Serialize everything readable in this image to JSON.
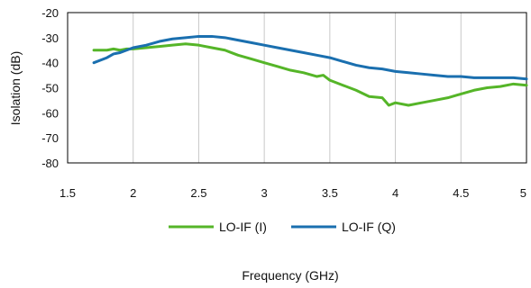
{
  "chart_data": {
    "type": "line",
    "title": "",
    "xlabel": "Frequency (GHz)",
    "ylabel": "Isolation (dB)",
    "xlim": [
      1.5,
      5
    ],
    "ylim": [
      -80,
      -20
    ],
    "x_ticks": [
      1.5,
      2,
      2.5,
      3,
      3.5,
      4,
      4.5,
      5
    ],
    "x_tick_labels": [
      "1.5",
      "2",
      "2.5",
      "3",
      "3.5",
      "4",
      "4.5",
      "5"
    ],
    "y_ticks": [
      -20,
      -30,
      -40,
      -50,
      -60,
      -70,
      -80
    ],
    "y_tick_labels": [
      "-20",
      "-30",
      "-40",
      "-50",
      "-60",
      "-70",
      "-80"
    ],
    "grid": {
      "vertical": true,
      "horizontal": false
    },
    "legend_position": "bottom",
    "series": [
      {
        "name": "LO-IF (I)",
        "color": "#55b528",
        "x": [
          1.7,
          1.8,
          1.85,
          1.9,
          1.95,
          2.0,
          2.1,
          2.2,
          2.3,
          2.4,
          2.5,
          2.6,
          2.7,
          2.8,
          2.9,
          3.0,
          3.1,
          3.2,
          3.3,
          3.4,
          3.45,
          3.5,
          3.6,
          3.7,
          3.8,
          3.9,
          3.95,
          4.0,
          4.1,
          4.2,
          4.3,
          4.4,
          4.5,
          4.6,
          4.7,
          4.8,
          4.9,
          5.0
        ],
        "values": [
          -35,
          -35,
          -34.5,
          -35,
          -34.5,
          -34.5,
          -34,
          -33.5,
          -33,
          -32.5,
          -33,
          -34,
          -35,
          -37,
          -38.5,
          -40,
          -41.5,
          -43,
          -44,
          -45.5,
          -45,
          -47,
          -49,
          -51,
          -53.5,
          -54,
          -57,
          -56,
          -57,
          -56,
          -55,
          -54,
          -52.5,
          -51,
          -50,
          -49.5,
          -48.5,
          -49
        ]
      },
      {
        "name": "LO-IF (Q)",
        "color": "#1a6faf",
        "x": [
          1.7,
          1.8,
          1.85,
          1.9,
          2.0,
          2.1,
          2.2,
          2.3,
          2.4,
          2.5,
          2.6,
          2.7,
          2.8,
          2.9,
          3.0,
          3.1,
          3.2,
          3.3,
          3.4,
          3.5,
          3.6,
          3.7,
          3.8,
          3.9,
          4.0,
          4.1,
          4.2,
          4.3,
          4.4,
          4.5,
          4.6,
          4.7,
          4.8,
          4.9,
          5.0
        ],
        "values": [
          -40,
          -38,
          -36.5,
          -36,
          -34,
          -33,
          -31.5,
          -30.5,
          -30,
          -29.5,
          -29.5,
          -30,
          -31,
          -32,
          -33,
          -34,
          -35,
          -36,
          -37,
          -38,
          -39.5,
          -41,
          -42,
          -42.5,
          -43.5,
          -44,
          -44.5,
          -45,
          -45.5,
          -45.5,
          -46,
          -46,
          -46,
          -46,
          -46.5
        ]
      }
    ]
  }
}
